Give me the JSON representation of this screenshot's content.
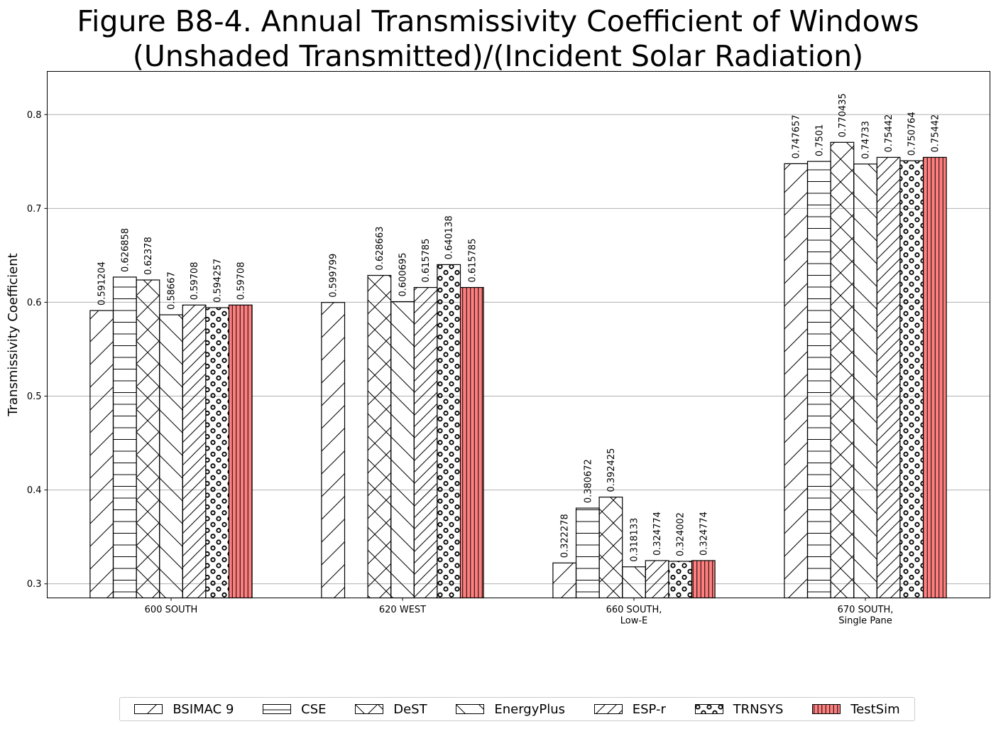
{
  "chart_data": {
    "type": "bar",
    "title": "Figure B8-4.  Annual Transmissivity Coefficient of Windows",
    "subtitle": "(Unshaded Transmitted)/(Incident Solar Radiation)",
    "xlabel": "",
    "ylabel": "Transmissivity Coefficient",
    "ylim": [
      0.285,
      0.846
    ],
    "yticks": [
      0.3,
      0.4,
      0.5,
      0.6,
      0.7,
      0.8
    ],
    "ytick_labels": [
      "0.3",
      "0.4",
      "0.5",
      "0.6",
      "0.7",
      "0.8"
    ],
    "grid": "horizontal",
    "legend_position": "bottom-center",
    "categories": [
      [
        "600 SOUTH"
      ],
      [
        "620 WEST"
      ],
      [
        "660 SOUTH,",
        "Low-E"
      ],
      [
        "670 SOUTH,",
        "Single Pane"
      ]
    ],
    "series": [
      {
        "name": "BSIMAC 9",
        "pattern": "diag-fwd",
        "color": "#ffffff",
        "values": [
          0.591204,
          0.599799,
          0.322278,
          0.747657
        ],
        "labels": [
          "0.591204",
          "0.599799",
          "0.322278",
          "0.747657"
        ]
      },
      {
        "name": "CSE",
        "pattern": "horizontal",
        "color": "#ffffff",
        "values": [
          0.626858,
          null,
          0.380672,
          0.7501
        ],
        "labels": [
          "0.626858",
          "",
          "0.380672",
          "0.7501"
        ]
      },
      {
        "name": "DeST",
        "pattern": "cross-diag",
        "color": "#ffffff",
        "values": [
          0.62378,
          0.628663,
          0.392425,
          0.770435
        ],
        "labels": [
          "0.62378",
          "0.628663",
          "0.392425",
          "0.770435"
        ]
      },
      {
        "name": "EnergyPlus",
        "pattern": "diag-back",
        "color": "#ffffff",
        "values": [
          0.58667,
          0.600695,
          0.318133,
          0.74733
        ],
        "labels": [
          "0.58667",
          "0.600695",
          "0.318133",
          "0.74733"
        ]
      },
      {
        "name": "ESP-r",
        "pattern": "diag-fwd-dense",
        "color": "#ffffff",
        "values": [
          0.59708,
          0.615785,
          0.324774,
          0.75442
        ],
        "labels": [
          "0.59708",
          "0.615785",
          "0.324774",
          "0.75442"
        ]
      },
      {
        "name": "TRNSYS",
        "pattern": "circles",
        "color": "#ffffff",
        "values": [
          0.594257,
          0.640138,
          0.324002,
          0.750764
        ],
        "labels": [
          "0.594257",
          "0.640138",
          "0.324002",
          "0.750764"
        ]
      },
      {
        "name": "TestSim",
        "pattern": "vertical",
        "color": "#ff7f7f",
        "values": [
          0.59708,
          0.615785,
          0.324774,
          0.75442
        ],
        "labels": [
          "0.59708",
          "0.615785",
          "0.324774",
          "0.75442"
        ]
      }
    ]
  }
}
